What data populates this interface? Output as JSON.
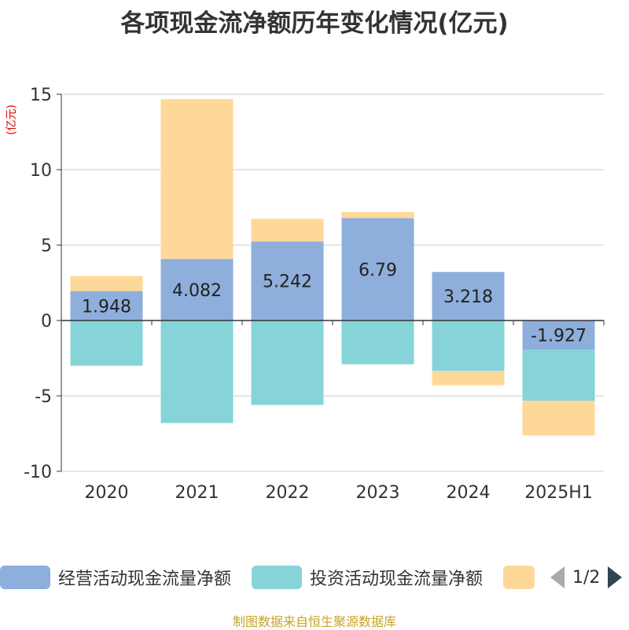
{
  "title": "各项现金流净额历年变化情况(亿元)",
  "unit_label": "(亿元)",
  "source": "制图数据来自恒生聚源数据库",
  "pager": {
    "text": "1/2"
  },
  "legend": [
    {
      "label": "经营活动现金流量净额",
      "color": "#8eaedb"
    },
    {
      "label": "投资活动现金流量净额",
      "color": "#86d4d8"
    },
    {
      "label": "",
      "color": "#fed899"
    }
  ],
  "chart_data": {
    "type": "bar",
    "stacked": true,
    "categories": [
      "2020",
      "2021",
      "2022",
      "2023",
      "2024",
      "2025H1"
    ],
    "ylim": [
      -10,
      15
    ],
    "yticks": [
      15,
      10,
      5,
      0,
      -5,
      -10
    ],
    "grid": true,
    "legend_position": "bottom",
    "series": [
      {
        "name": "经营活动现金流量净额",
        "color": "#8eaedb",
        "values": [
          1.948,
          4.082,
          5.242,
          6.79,
          3.218,
          -1.927
        ],
        "show_labels": true
      },
      {
        "name": "投资活动现金流量净额",
        "color": "#86d4d8",
        "values": [
          -3.0,
          -6.8,
          -5.6,
          -2.9,
          -3.35,
          -3.4
        ],
        "show_labels": false
      },
      {
        "name": "",
        "color": "#fed899",
        "values": [
          1.0,
          10.6,
          1.5,
          0.4,
          -0.95,
          -2.3
        ],
        "show_labels": false
      }
    ]
  }
}
